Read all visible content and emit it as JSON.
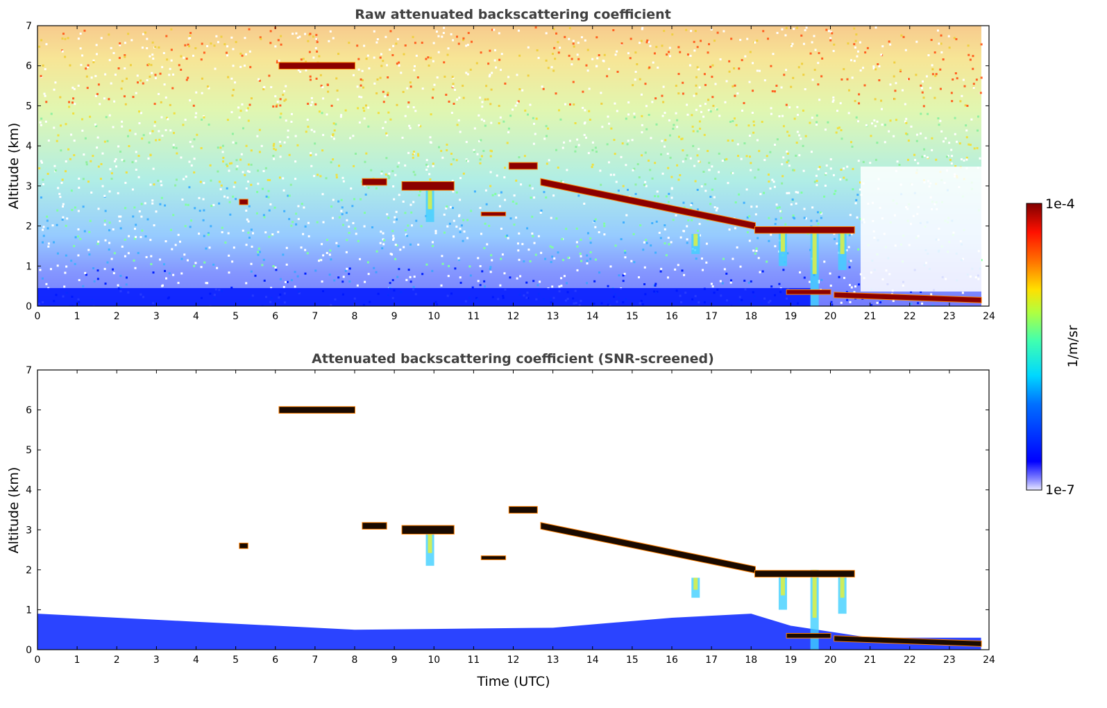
{
  "chart_data": [
    {
      "type": "heatmap",
      "title": "Raw attenuated backscattering coefficient",
      "xlabel": "",
      "ylabel": "Altitude (km)",
      "xlim": [
        0,
        24
      ],
      "ylim": [
        0,
        7
      ],
      "x_ticks": [
        "0",
        "1",
        "2",
        "3",
        "4",
        "5",
        "6",
        "7",
        "8",
        "9",
        "10",
        "11",
        "12",
        "13",
        "14",
        "15",
        "16",
        "17",
        "18",
        "19",
        "20",
        "21",
        "22",
        "23",
        "24"
      ],
      "y_ticks": [
        "0",
        "1",
        "2",
        "3",
        "4",
        "5",
        "6",
        "7"
      ],
      "features": {
        "cloud_layers": [
          {
            "x0": 6.1,
            "x1": 8.0,
            "y": 6.0,
            "thickness": 0.15
          },
          {
            "x0": 5.1,
            "x1": 5.3,
            "y": 2.6,
            "thickness": 0.12
          },
          {
            "x0": 8.2,
            "x1": 8.8,
            "y": 3.1,
            "thickness": 0.15
          },
          {
            "x0": 9.2,
            "x1": 10.5,
            "y": 3.0,
            "thickness": 0.2
          },
          {
            "x0": 11.2,
            "x1": 11.8,
            "y": 2.3,
            "thickness": 0.08
          },
          {
            "x0": 11.9,
            "x1": 12.6,
            "y": 3.5,
            "thickness": 0.15
          },
          {
            "x0": 12.7,
            "x1": 18.1,
            "y_start": 3.1,
            "y_end": 2.0,
            "thickness": 0.15
          },
          {
            "x0": 18.1,
            "x1": 20.6,
            "y": 1.9,
            "thickness": 0.15
          },
          {
            "x0": 18.9,
            "x1": 20.0,
            "y": 0.35,
            "thickness": 0.1
          },
          {
            "x0": 20.1,
            "x1": 23.8,
            "y_start": 0.28,
            "y_end": 0.15,
            "thickness": 0.12
          }
        ],
        "precip_streaks": [
          {
            "x": 9.9,
            "y_top": 2.9,
            "y_bottom": 2.1
          },
          {
            "x": 16.6,
            "y_top": 1.8,
            "y_bottom": 1.3
          },
          {
            "x": 18.8,
            "y_top": 1.9,
            "y_bottom": 1.0
          },
          {
            "x": 19.6,
            "y_top": 2.0,
            "y_bottom": 0.0
          },
          {
            "x": 20.3,
            "y_top": 1.9,
            "y_bottom": 0.9
          }
        ]
      }
    },
    {
      "type": "heatmap",
      "title": "Attenuated backscattering coefficient (SNR-screened)",
      "xlabel": "Time (UTC)",
      "ylabel": "Altitude (km)",
      "xlim": [
        0,
        24
      ],
      "ylim": [
        0,
        7
      ],
      "x_ticks": [
        "0",
        "1",
        "2",
        "3",
        "4",
        "5",
        "6",
        "7",
        "8",
        "9",
        "10",
        "11",
        "12",
        "13",
        "14",
        "15",
        "16",
        "17",
        "18",
        "19",
        "20",
        "21",
        "22",
        "23",
        "24"
      ],
      "y_ticks": [
        "0",
        "1",
        "2",
        "3",
        "4",
        "5",
        "6",
        "7"
      ],
      "features": {
        "boundary_layer_top": [
          [
            0,
            0.9
          ],
          [
            4,
            0.7
          ],
          [
            8,
            0.5
          ],
          [
            13,
            0.55
          ],
          [
            16,
            0.8
          ],
          [
            18,
            0.9
          ],
          [
            19,
            0.6
          ],
          [
            21,
            0.3
          ],
          [
            23.8,
            0.3
          ]
        ]
      }
    }
  ],
  "colorbar": {
    "label": "1/m/sr",
    "max_label": "1e-4",
    "min_label": "1e-7",
    "colormap": "jet",
    "scale": "log"
  },
  "colors": {
    "cloud_core": "#8b0000",
    "low_signal": "#0010ff",
    "title_color": "#404040"
  }
}
